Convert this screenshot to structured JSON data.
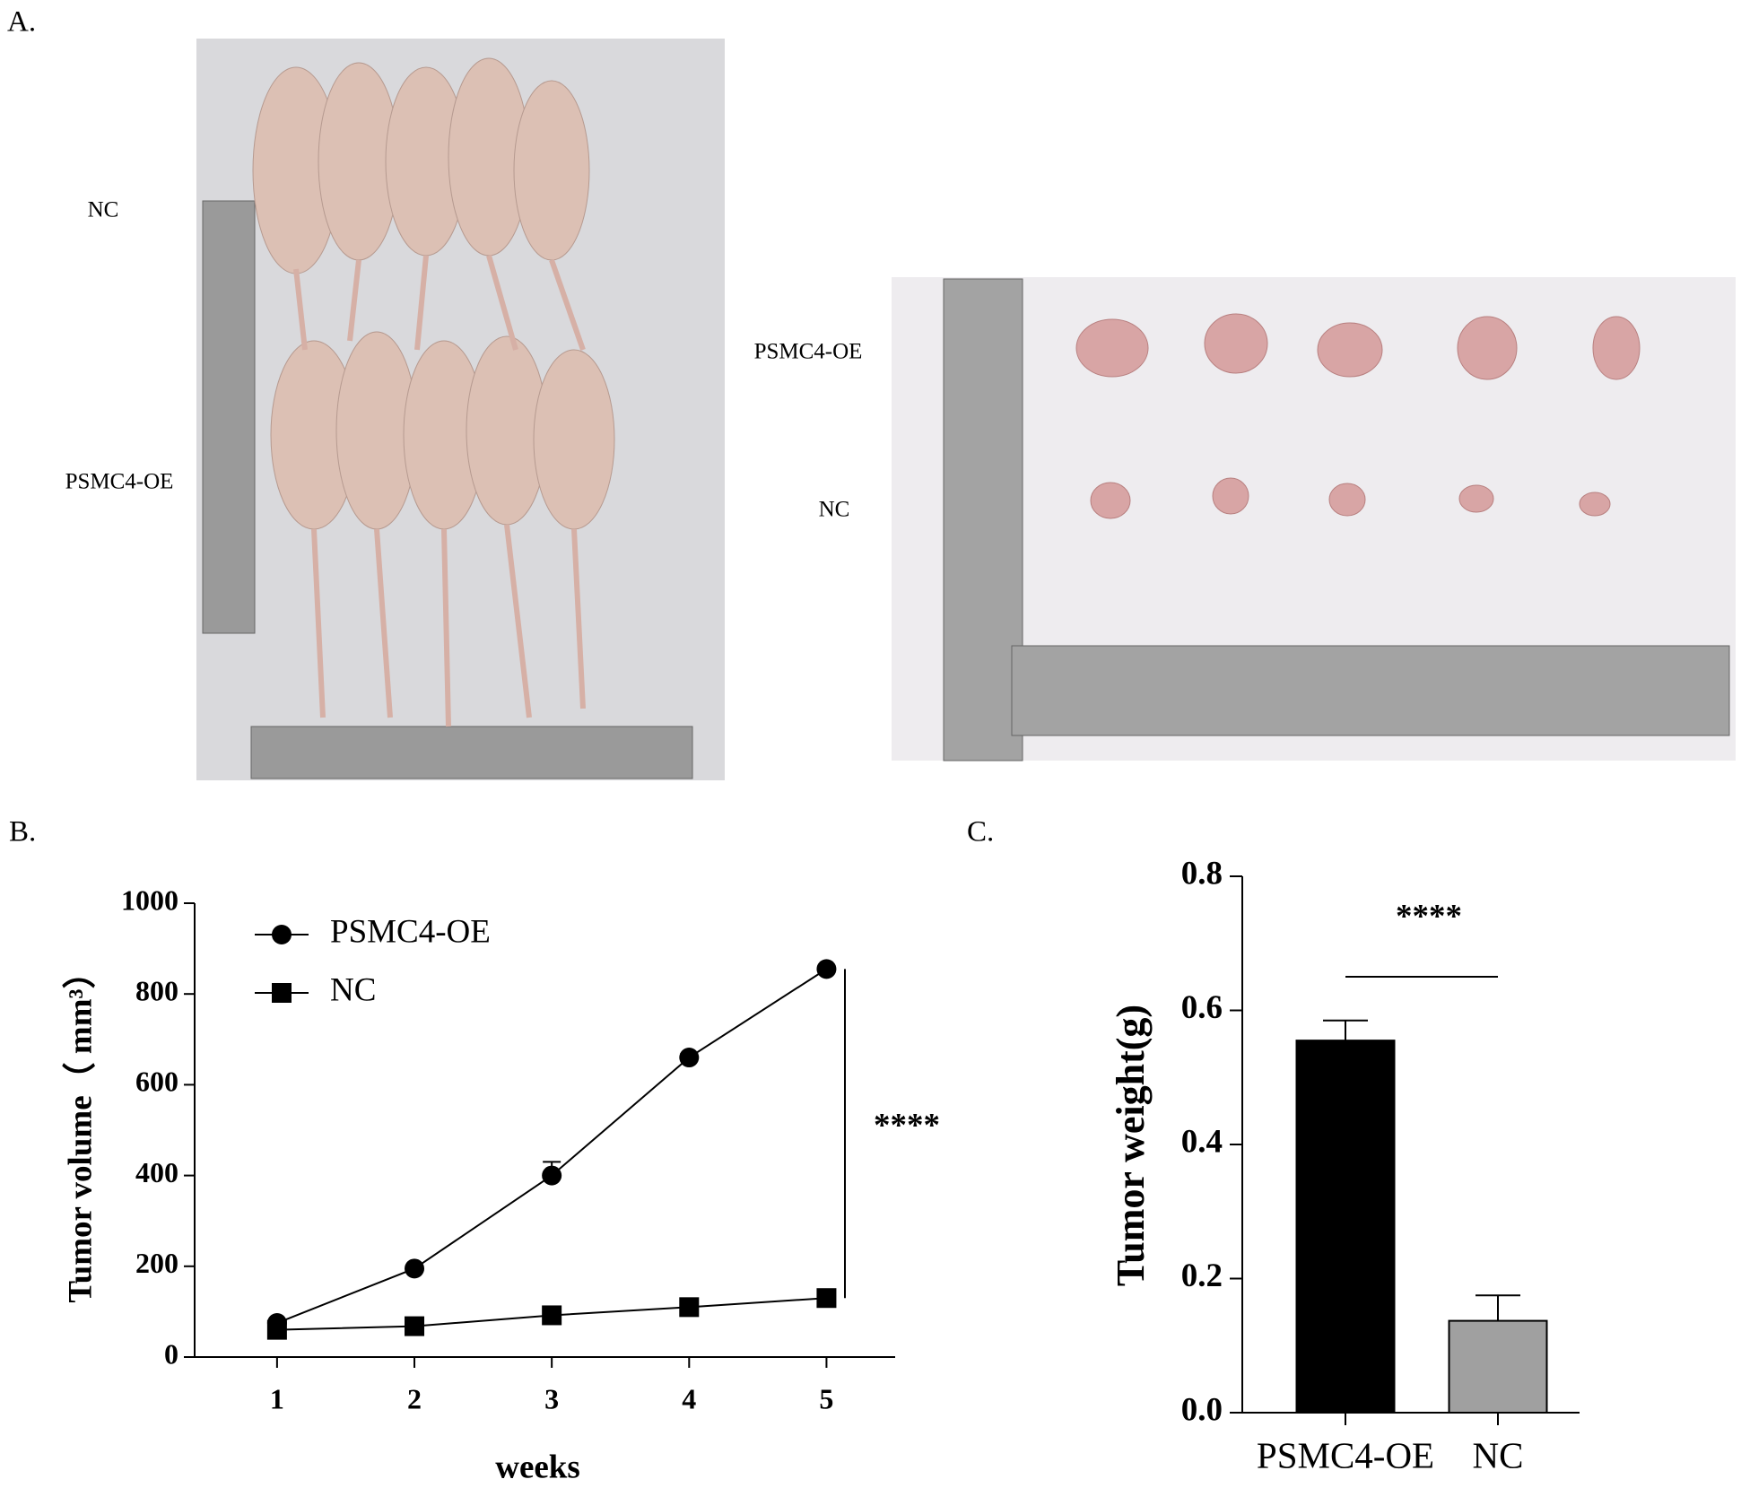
{
  "panel_labels": [
    "A.",
    "B.",
    "C."
  ],
  "photo_labels": {
    "left": [
      "NC",
      "PSMC4-OE"
    ],
    "right": [
      "PSMC4-OE",
      "NC"
    ]
  },
  "chart_data": [
    {
      "type": "line",
      "xlabel": "weeks",
      "ylabel": "Tumor volume（ mm³）",
      "x": [
        1,
        2,
        3,
        4,
        5
      ],
      "xlim": [
        0.4,
        5.5
      ],
      "xticks": [
        1,
        2,
        3,
        4,
        5
      ],
      "ylim": [
        0,
        1000
      ],
      "yticks": [
        0,
        200,
        400,
        600,
        800,
        1000
      ],
      "series": [
        {
          "name": "PSMC4-OE",
          "color": "#000000",
          "marker": "circle",
          "values": [
            75,
            195,
            400,
            660,
            855
          ],
          "errors": [
            4,
            6,
            30,
            8,
            6
          ]
        },
        {
          "name": "NC",
          "color": "#000000",
          "marker": "square",
          "values": [
            60,
            68,
            92,
            110,
            130
          ],
          "errors": [
            3,
            3,
            4,
            4,
            4
          ]
        }
      ],
      "annotation": "****"
    },
    {
      "type": "bar",
      "ylabel": "Tumor weight(g)",
      "categories": [
        "PSMC4-OE",
        "NC"
      ],
      "values": [
        0.555,
        0.137
      ],
      "errors": [
        0.03,
        0.038
      ],
      "colors": [
        "#000000",
        "#a0a0a0"
      ],
      "ylim": [
        0,
        0.8
      ],
      "yticks": [
        {
          "value": 0,
          "label": "0.0"
        },
        0.2,
        0.4,
        0.6,
        0.8
      ],
      "annotation": "****"
    }
  ]
}
